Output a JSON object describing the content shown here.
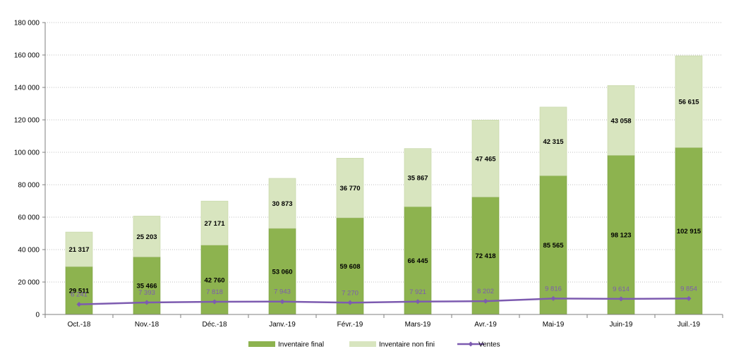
{
  "chart_data": {
    "type": "bar",
    "stacked": true,
    "categories": [
      "Oct.-18",
      "Nov.-18",
      "Déc.-18",
      "Janv.-19",
      "Févr.-19",
      "Mars-19",
      "Avr.-19",
      "Mai-19",
      "Juin-19",
      "Juil.-19"
    ],
    "series": [
      {
        "name": "Inventaire final",
        "type": "bar",
        "color": "#8db34f",
        "values": [
          29511,
          35466,
          42760,
          53060,
          59608,
          66445,
          72418,
          85565,
          98123,
          102915
        ],
        "labels": [
          "29 511",
          "35 466",
          "42 760",
          "53 060",
          "59 608",
          "66 445",
          "72 418",
          "85 565",
          "98 123",
          "102 915"
        ]
      },
      {
        "name": "Inventaire non fini",
        "type": "bar",
        "color": "#d8e5bf",
        "values": [
          21317,
          25203,
          27171,
          30873,
          36770,
          35867,
          47465,
          42315,
          43058,
          56615
        ],
        "labels": [
          "21 317",
          "25 203",
          "27 171",
          "30 873",
          "36 770",
          "35 867",
          "47 465",
          "42 315",
          "43 058",
          "56 615"
        ]
      },
      {
        "name": "Ventes",
        "type": "line",
        "color": "#7d5bb0",
        "values": [
          6241,
          7393,
          7818,
          7943,
          7270,
          7921,
          8202,
          9816,
          9614,
          9854
        ],
        "labels": [
          "6 241",
          "7 393",
          "7 818",
          "7 943",
          "7 270",
          "7 921",
          "8 202",
          "9 816",
          "9 614",
          "9 854"
        ]
      }
    ],
    "ylim": [
      0,
      180000
    ],
    "yticks": [
      0,
      20000,
      40000,
      60000,
      80000,
      100000,
      120000,
      140000,
      160000,
      180000
    ],
    "ytick_labels": [
      "0",
      "20 000",
      "40 000",
      "60 000",
      "80 000",
      "100 000",
      "120 000",
      "140 000",
      "160 000",
      "180 000"
    ],
    "grid": true,
    "legend_position": "bottom"
  }
}
